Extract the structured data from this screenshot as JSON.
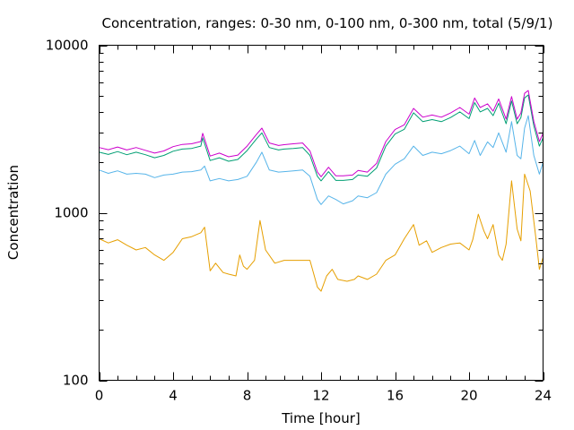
{
  "chart_data": {
    "type": "line",
    "title": "Concentration, ranges: 0-30 nm, 0-100 nm, 0-300 nm, total (5/9/1)",
    "xlabel": "Time [hour]",
    "ylabel": "Concentration",
    "xlim": [
      0,
      24
    ],
    "ylim": [
      100,
      10000
    ],
    "yscale": "log",
    "grid": false,
    "legend": "none",
    "x_ticks": [
      0,
      4,
      8,
      12,
      16,
      20,
      24
    ],
    "y_ticks": [
      100,
      1000,
      10000
    ],
    "series": [
      {
        "color": "#e69f00",
        "points": [
          [
            0,
            700
          ],
          [
            0.5,
            660
          ],
          [
            1,
            690
          ],
          [
            1.5,
            640
          ],
          [
            2,
            600
          ],
          [
            2.5,
            620
          ],
          [
            3,
            560
          ],
          [
            3.5,
            520
          ],
          [
            4,
            580
          ],
          [
            4.5,
            700
          ],
          [
            5,
            720
          ],
          [
            5.5,
            760
          ],
          [
            5.7,
            820
          ],
          [
            6,
            450
          ],
          [
            6.3,
            500
          ],
          [
            6.7,
            440
          ],
          [
            7,
            430
          ],
          [
            7.4,
            420
          ],
          [
            7.6,
            560
          ],
          [
            7.8,
            480
          ],
          [
            8,
            460
          ],
          [
            8.4,
            520
          ],
          [
            8.7,
            900
          ],
          [
            9,
            600
          ],
          [
            9.5,
            500
          ],
          [
            10,
            520
          ],
          [
            10.5,
            520
          ],
          [
            11,
            520
          ],
          [
            11.4,
            520
          ],
          [
            11.8,
            360
          ],
          [
            12,
            340
          ],
          [
            12.3,
            420
          ],
          [
            12.6,
            460
          ],
          [
            12.9,
            400
          ],
          [
            13.4,
            390
          ],
          [
            13.8,
            400
          ],
          [
            14,
            420
          ],
          [
            14.5,
            400
          ],
          [
            15,
            430
          ],
          [
            15.5,
            520
          ],
          [
            16,
            560
          ],
          [
            16.5,
            700
          ],
          [
            17,
            850
          ],
          [
            17.3,
            640
          ],
          [
            17.7,
            680
          ],
          [
            18,
            580
          ],
          [
            18.5,
            620
          ],
          [
            19,
            650
          ],
          [
            19.5,
            660
          ],
          [
            20,
            600
          ],
          [
            20.2,
            690
          ],
          [
            20.5,
            980
          ],
          [
            20.8,
            780
          ],
          [
            21,
            700
          ],
          [
            21.3,
            850
          ],
          [
            21.6,
            560
          ],
          [
            21.8,
            520
          ],
          [
            22,
            650
          ],
          [
            22.3,
            1550
          ],
          [
            22.6,
            800
          ],
          [
            22.8,
            680
          ],
          [
            23,
            1700
          ],
          [
            23.3,
            1350
          ],
          [
            23.6,
            720
          ],
          [
            23.8,
            460
          ],
          [
            24,
            540
          ]
        ]
      },
      {
        "color": "#56b4e9",
        "points": [
          [
            0,
            1800
          ],
          [
            0.5,
            1720
          ],
          [
            1,
            1780
          ],
          [
            1.5,
            1700
          ],
          [
            2,
            1720
          ],
          [
            2.5,
            1700
          ],
          [
            3,
            1620
          ],
          [
            3.5,
            1680
          ],
          [
            4,
            1700
          ],
          [
            4.5,
            1750
          ],
          [
            5,
            1760
          ],
          [
            5.5,
            1800
          ],
          [
            5.7,
            1900
          ],
          [
            6,
            1550
          ],
          [
            6.5,
            1600
          ],
          [
            7,
            1550
          ],
          [
            7.5,
            1580
          ],
          [
            8,
            1650
          ],
          [
            8.5,
            2000
          ],
          [
            8.8,
            2300
          ],
          [
            9.2,
            1800
          ],
          [
            9.7,
            1750
          ],
          [
            10,
            1760
          ],
          [
            10.5,
            1780
          ],
          [
            11,
            1800
          ],
          [
            11.4,
            1650
          ],
          [
            11.8,
            1200
          ],
          [
            12,
            1120
          ],
          [
            12.4,
            1260
          ],
          [
            12.8,
            1200
          ],
          [
            13.2,
            1130
          ],
          [
            13.7,
            1180
          ],
          [
            14,
            1260
          ],
          [
            14.5,
            1230
          ],
          [
            15,
            1320
          ],
          [
            15.5,
            1700
          ],
          [
            16,
            1950
          ],
          [
            16.5,
            2100
          ],
          [
            17,
            2500
          ],
          [
            17.5,
            2200
          ],
          [
            18,
            2300
          ],
          [
            18.5,
            2250
          ],
          [
            19,
            2350
          ],
          [
            19.5,
            2500
          ],
          [
            20,
            2250
          ],
          [
            20.3,
            2700
          ],
          [
            20.6,
            2200
          ],
          [
            21,
            2650
          ],
          [
            21.3,
            2450
          ],
          [
            21.6,
            3000
          ],
          [
            22,
            2300
          ],
          [
            22.3,
            3500
          ],
          [
            22.6,
            2200
          ],
          [
            22.8,
            2100
          ],
          [
            23,
            3200
          ],
          [
            23.2,
            3800
          ],
          [
            23.5,
            2200
          ],
          [
            23.8,
            1700
          ],
          [
            24,
            2000
          ]
        ]
      },
      {
        "color": "#009e73",
        "points": [
          [
            0,
            2300
          ],
          [
            0.5,
            2230
          ],
          [
            1,
            2320
          ],
          [
            1.5,
            2220
          ],
          [
            2,
            2300
          ],
          [
            2.5,
            2220
          ],
          [
            3,
            2130
          ],
          [
            3.5,
            2200
          ],
          [
            4,
            2330
          ],
          [
            4.5,
            2400
          ],
          [
            5,
            2420
          ],
          [
            5.5,
            2500
          ],
          [
            5.6,
            2800
          ],
          [
            6,
            2050
          ],
          [
            6.5,
            2130
          ],
          [
            7,
            2030
          ],
          [
            7.5,
            2080
          ],
          [
            8,
            2350
          ],
          [
            8.5,
            2750
          ],
          [
            8.8,
            3000
          ],
          [
            9.2,
            2450
          ],
          [
            9.7,
            2370
          ],
          [
            10,
            2400
          ],
          [
            10.5,
            2420
          ],
          [
            11,
            2450
          ],
          [
            11.4,
            2200
          ],
          [
            11.8,
            1650
          ],
          [
            12,
            1550
          ],
          [
            12.4,
            1760
          ],
          [
            12.8,
            1560
          ],
          [
            13.2,
            1560
          ],
          [
            13.7,
            1580
          ],
          [
            14,
            1680
          ],
          [
            14.5,
            1650
          ],
          [
            15,
            1850
          ],
          [
            15.5,
            2500
          ],
          [
            16,
            2950
          ],
          [
            16.5,
            3150
          ],
          [
            17,
            3950
          ],
          [
            17.5,
            3500
          ],
          [
            18,
            3600
          ],
          [
            18.5,
            3500
          ],
          [
            19,
            3700
          ],
          [
            19.5,
            4000
          ],
          [
            20,
            3650
          ],
          [
            20.3,
            4550
          ],
          [
            20.6,
            4000
          ],
          [
            21,
            4200
          ],
          [
            21.3,
            3800
          ],
          [
            21.6,
            4500
          ],
          [
            22,
            3400
          ],
          [
            22.3,
            4650
          ],
          [
            22.6,
            3400
          ],
          [
            22.8,
            3700
          ],
          [
            23,
            4850
          ],
          [
            23.2,
            5050
          ],
          [
            23.5,
            3300
          ],
          [
            23.8,
            2500
          ],
          [
            24,
            2800
          ]
        ]
      },
      {
        "color": "#cc00cc",
        "points": [
          [
            0,
            2450
          ],
          [
            0.5,
            2380
          ],
          [
            1,
            2470
          ],
          [
            1.5,
            2370
          ],
          [
            2,
            2450
          ],
          [
            2.5,
            2360
          ],
          [
            3,
            2270
          ],
          [
            3.5,
            2340
          ],
          [
            4,
            2480
          ],
          [
            4.5,
            2560
          ],
          [
            5,
            2580
          ],
          [
            5.5,
            2660
          ],
          [
            5.6,
            2980
          ],
          [
            6,
            2180
          ],
          [
            6.5,
            2270
          ],
          [
            7,
            2160
          ],
          [
            7.5,
            2210
          ],
          [
            8,
            2500
          ],
          [
            8.5,
            2930
          ],
          [
            8.8,
            3200
          ],
          [
            9.2,
            2610
          ],
          [
            9.7,
            2520
          ],
          [
            10,
            2550
          ],
          [
            10.5,
            2580
          ],
          [
            11,
            2610
          ],
          [
            11.4,
            2340
          ],
          [
            11.8,
            1750
          ],
          [
            12,
            1640
          ],
          [
            12.4,
            1870
          ],
          [
            12.8,
            1660
          ],
          [
            13.2,
            1660
          ],
          [
            13.7,
            1680
          ],
          [
            14,
            1790
          ],
          [
            14.5,
            1750
          ],
          [
            15,
            1970
          ],
          [
            15.5,
            2660
          ],
          [
            16,
            3140
          ],
          [
            16.5,
            3350
          ],
          [
            17,
            4200
          ],
          [
            17.5,
            3720
          ],
          [
            18,
            3830
          ],
          [
            18.5,
            3720
          ],
          [
            19,
            3940
          ],
          [
            19.5,
            4250
          ],
          [
            20,
            3880
          ],
          [
            20.3,
            4840
          ],
          [
            20.6,
            4250
          ],
          [
            21,
            4470
          ],
          [
            21.3,
            4040
          ],
          [
            21.6,
            4780
          ],
          [
            22,
            3620
          ],
          [
            22.3,
            4940
          ],
          [
            22.6,
            3620
          ],
          [
            22.8,
            3940
          ],
          [
            23,
            5160
          ],
          [
            23.2,
            5370
          ],
          [
            23.5,
            3510
          ],
          [
            23.8,
            2660
          ],
          [
            24,
            2980
          ]
        ]
      }
    ]
  }
}
